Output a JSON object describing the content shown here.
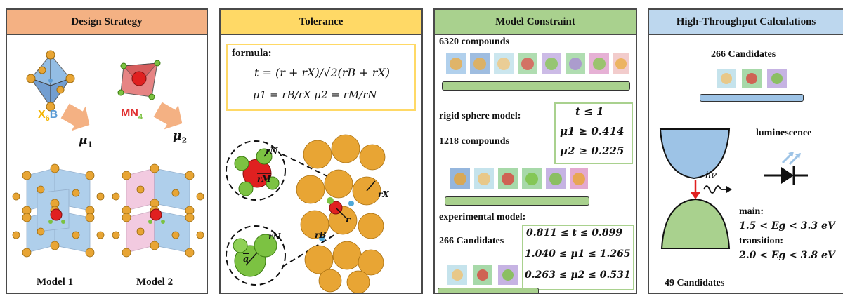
{
  "panels": {
    "design": {
      "title": "Design Strategy",
      "header_color": "#f4b183",
      "x6b_prefix": "X",
      "x6b_sub": "6",
      "x6b_suffix": "B",
      "mn4_prefix": "MN",
      "mn4_sub": "4",
      "mu1": "μ",
      "mu1_sub": "1",
      "mu2": "μ",
      "mu2_sub": "2",
      "model1": "Model 1",
      "model2": "Model 2"
    },
    "tolerance": {
      "title": "Tolerance",
      "header_color": "#ffd966",
      "formula_label": "formula:",
      "formula_t": "t = (r + rX)/√2(rB + rX)",
      "formula_mu": "μ1 = rB/rX   μ2 = rM/rN",
      "label_rN": "rN",
      "label_rM": "rM",
      "label_rN2": "rN",
      "label_a": "a",
      "label_rX": "rX",
      "label_r": "r",
      "label_rB": "rB"
    },
    "constraint": {
      "title": "Model Constraint",
      "header_color": "#a9d18e",
      "compounds_6320": "6320 compounds",
      "rigid_label": "rigid sphere model:",
      "compounds_1218": "1218 compounds",
      "rigid_conditions": [
        "t ≤ 1",
        "μ1 ≥ 0.414",
        "μ2 ≥ 0.225"
      ],
      "experimental_label": "experimental model:",
      "candidates_266": "266 Candidates",
      "experimental_conditions": [
        "0.811 ≤ t ≤ 0.899",
        "1.040 ≤ μ1 ≤ 1.265",
        "0.263 ≤ μ2 ≤ 0.531"
      ]
    },
    "htc": {
      "title": "High-Throughput Calculations",
      "header_color": "#bdd7ee",
      "candidates_266": "266 Candidates",
      "luminescence": "luminescence",
      "hv": "hν",
      "main_label": "main:",
      "main_range": "1.5 < Eg < 3.3 eV",
      "transition_label": "transition:",
      "transition_range": "2.0 < Eg < 3.8 eV",
      "candidates_49": "49 Candidates"
    }
  },
  "colors": {
    "gold": "#e8a534",
    "blue": "#6fa8dc",
    "pink": "#e8a0c8",
    "red": "#e03030",
    "green": "#7cc242",
    "border": "#4a4a4a"
  }
}
